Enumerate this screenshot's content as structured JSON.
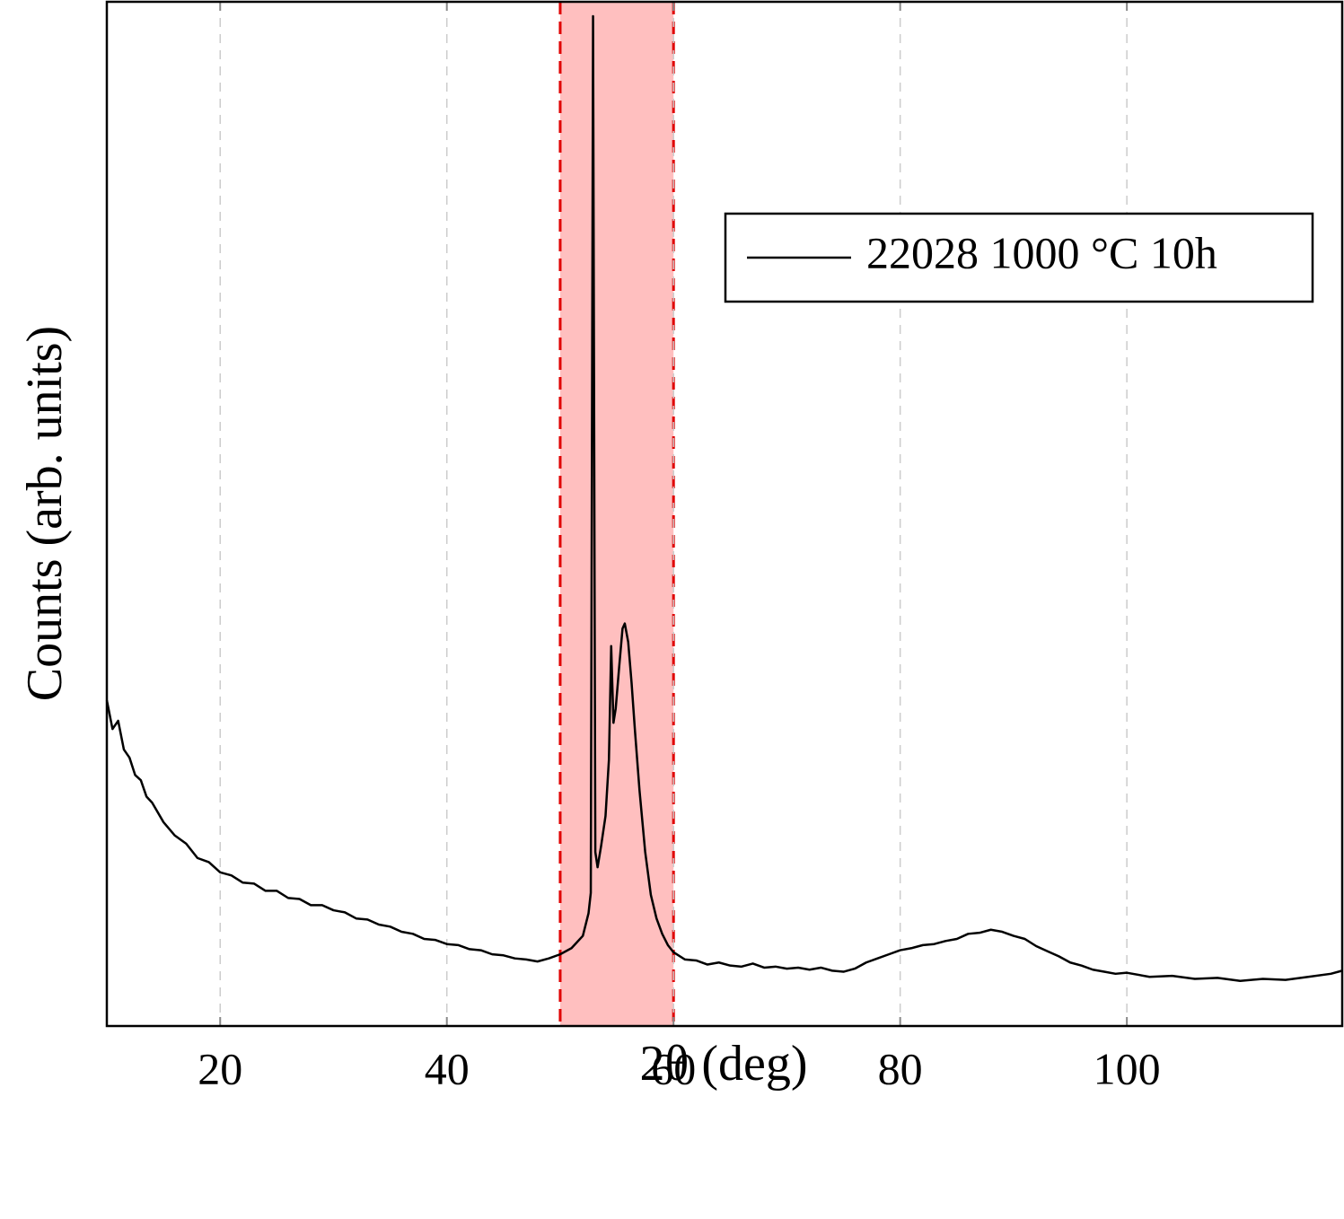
{
  "chart_data": {
    "type": "line",
    "xlabel": "2θ (deg)",
    "ylabel": "Counts (arb. units)",
    "xlim": [
      10,
      119
    ],
    "ylim": [
      0,
      100
    ],
    "xticks": [
      20,
      40,
      60,
      80,
      100
    ],
    "grid": true,
    "legend": "upper right",
    "highlight_span": {
      "x": [
        50,
        60
      ],
      "color": "#ffbfbf",
      "edge_color": "#e00000"
    },
    "x": [
      10,
      10.5,
      11,
      11.5,
      12,
      12.5,
      13,
      13.5,
      14,
      15,
      16,
      17,
      18,
      19,
      20,
      21,
      22,
      23,
      24,
      25,
      26,
      27,
      28,
      29,
      30,
      31,
      32,
      33,
      34,
      35,
      36,
      37,
      38,
      39,
      40,
      41,
      42,
      43,
      44,
      45,
      46,
      47,
      48,
      49,
      50,
      51,
      52,
      52.5,
      52.7,
      52.9,
      53.1,
      53.3,
      53.6,
      54,
      54.3,
      54.5,
      54.7,
      54.9,
      55.2,
      55.5,
      55.7,
      56,
      56.3,
      56.6,
      57,
      57.5,
      58,
      58.5,
      59,
      59.5,
      60,
      61,
      62,
      63,
      64,
      65,
      66,
      67,
      68,
      69,
      70,
      71,
      72,
      73,
      74,
      75,
      76,
      77,
      78,
      79,
      80,
      81,
      82,
      83,
      84,
      85,
      86,
      87,
      88,
      89,
      90,
      91,
      92,
      93,
      94,
      95,
      96,
      97,
      98,
      99,
      100,
      102,
      104,
      106,
      108,
      110,
      112,
      114,
      116,
      118,
      119
    ],
    "series": [
      {
        "name": "22028 1000 °C 10h",
        "color": "#000000",
        "values": [
          31.8,
          29.0,
          29.8,
          27.0,
          26.2,
          24.5,
          24.0,
          22.4,
          21.8,
          19.9,
          18.6,
          17.8,
          16.4,
          16.0,
          15.0,
          14.7,
          14.0,
          13.9,
          13.2,
          13.2,
          12.5,
          12.4,
          11.8,
          11.8,
          11.3,
          11.1,
          10.5,
          10.4,
          9.9,
          9.7,
          9.2,
          9.0,
          8.5,
          8.4,
          8.0,
          7.9,
          7.5,
          7.4,
          7.0,
          6.9,
          6.6,
          6.5,
          6.3,
          6.6,
          7.0,
          7.6,
          8.8,
          11.0,
          13.0,
          98.6,
          17.0,
          15.5,
          17.5,
          20.5,
          26.0,
          37.1,
          29.6,
          31.0,
          35.0,
          38.8,
          39.3,
          37.5,
          33.5,
          28.8,
          23.0,
          17.0,
          12.8,
          10.5,
          9.0,
          7.9,
          7.2,
          6.5,
          6.4,
          6.0,
          6.2,
          5.9,
          5.8,
          6.1,
          5.7,
          5.8,
          5.6,
          5.7,
          5.5,
          5.7,
          5.4,
          5.3,
          5.6,
          6.2,
          6.6,
          7.0,
          7.4,
          7.6,
          7.9,
          8.0,
          8.3,
          8.5,
          9.0,
          9.1,
          9.4,
          9.2,
          8.8,
          8.5,
          7.8,
          7.3,
          6.8,
          6.2,
          5.9,
          5.5,
          5.3,
          5.1,
          5.2,
          4.8,
          4.9,
          4.6,
          4.7,
          4.4,
          4.6,
          4.5,
          4.8,
          5.1,
          5.4
        ]
      }
    ]
  }
}
